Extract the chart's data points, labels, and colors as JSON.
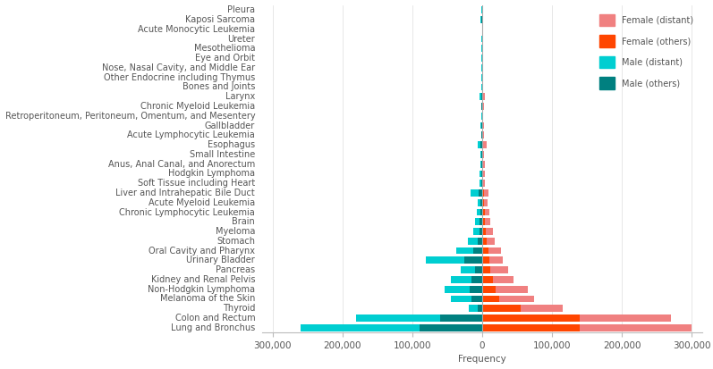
{
  "categories": [
    "Lung and Bronchus",
    "Colon and Rectum",
    "Thyroid",
    "Melanoma of the Skin",
    "Non-Hodgkin Lymphoma",
    "Kidney and Renal Pelvis",
    "Pancreas",
    "Urinary Bladder",
    "Oral Cavity and Pharynx",
    "Stomach",
    "Myeloma",
    "Brain",
    "Chronic Lymphocytic Leukemia",
    "Acute Myeloid Leukemia",
    "Liver and Intrahepatic Bile Duct",
    "Soft Tissue including Heart",
    "Hodgkin Lymphoma",
    "Anus, Anal Canal, and Anorectum",
    "Small Intestine",
    "Esophagus",
    "Acute Lymphocytic Leukemia",
    "Gallbladder",
    "Retroperitoneum, Peritoneum, Omentum, and Mesentery",
    "Chronic Myeloid Leukemia",
    "Larynx",
    "Bones and Joints",
    "Other Endocrine including Thymus",
    "Nose, Nasal Cavity, and Middle Ear",
    "Eye and Orbit",
    "Mesothelioma",
    "Ureter",
    "Acute Monocytic Leukemia",
    "Kaposi Sarcoma",
    "Pleura"
  ],
  "female_distant": [
    160000,
    130000,
    60000,
    50000,
    45000,
    30000,
    25000,
    20000,
    18000,
    12000,
    10000,
    8000,
    7000,
    5000,
    6000,
    3000,
    3000,
    2500,
    2000,
    4500,
    1500,
    1800,
    1200,
    1500,
    3000,
    1200,
    800,
    700,
    900,
    800,
    400,
    300,
    200,
    500
  ],
  "female_others": [
    140000,
    140000,
    55000,
    25000,
    20000,
    15000,
    12000,
    10000,
    9000,
    6000,
    5000,
    4000,
    3500,
    2500,
    3000,
    1500,
    1500,
    1200,
    1000,
    2000,
    700,
    900,
    600,
    700,
    1500,
    600,
    400,
    300,
    400,
    300,
    200,
    100,
    100,
    200
  ],
  "male_distant": [
    170000,
    120000,
    13000,
    30000,
    35000,
    30000,
    20000,
    55000,
    25000,
    14000,
    8000,
    7000,
    5500,
    4000,
    12000,
    2500,
    2500,
    2000,
    1500,
    4000,
    1200,
    1500,
    1000,
    1200,
    2500,
    1000,
    700,
    600,
    700,
    1200,
    500,
    300,
    1500,
    600
  ],
  "male_others": [
    90000,
    60000,
    6000,
    15000,
    18000,
    15000,
    10000,
    25000,
    12000,
    6000,
    4000,
    3500,
    2500,
    2000,
    5000,
    1200,
    1200,
    900,
    700,
    1800,
    500,
    600,
    400,
    500,
    1000,
    350,
    200,
    200,
    200,
    400,
    200,
    100,
    500,
    200
  ],
  "female_distant_color": "#F08080",
  "female_others_color": "#FF4500",
  "male_distant_color": "#00CED1",
  "male_others_color": "#008080",
  "background_color": "#FFFFFF",
  "xlabel": "Frequency",
  "xlim": 315000,
  "label_fontsize": 7.0,
  "tick_fontsize": 7.5
}
